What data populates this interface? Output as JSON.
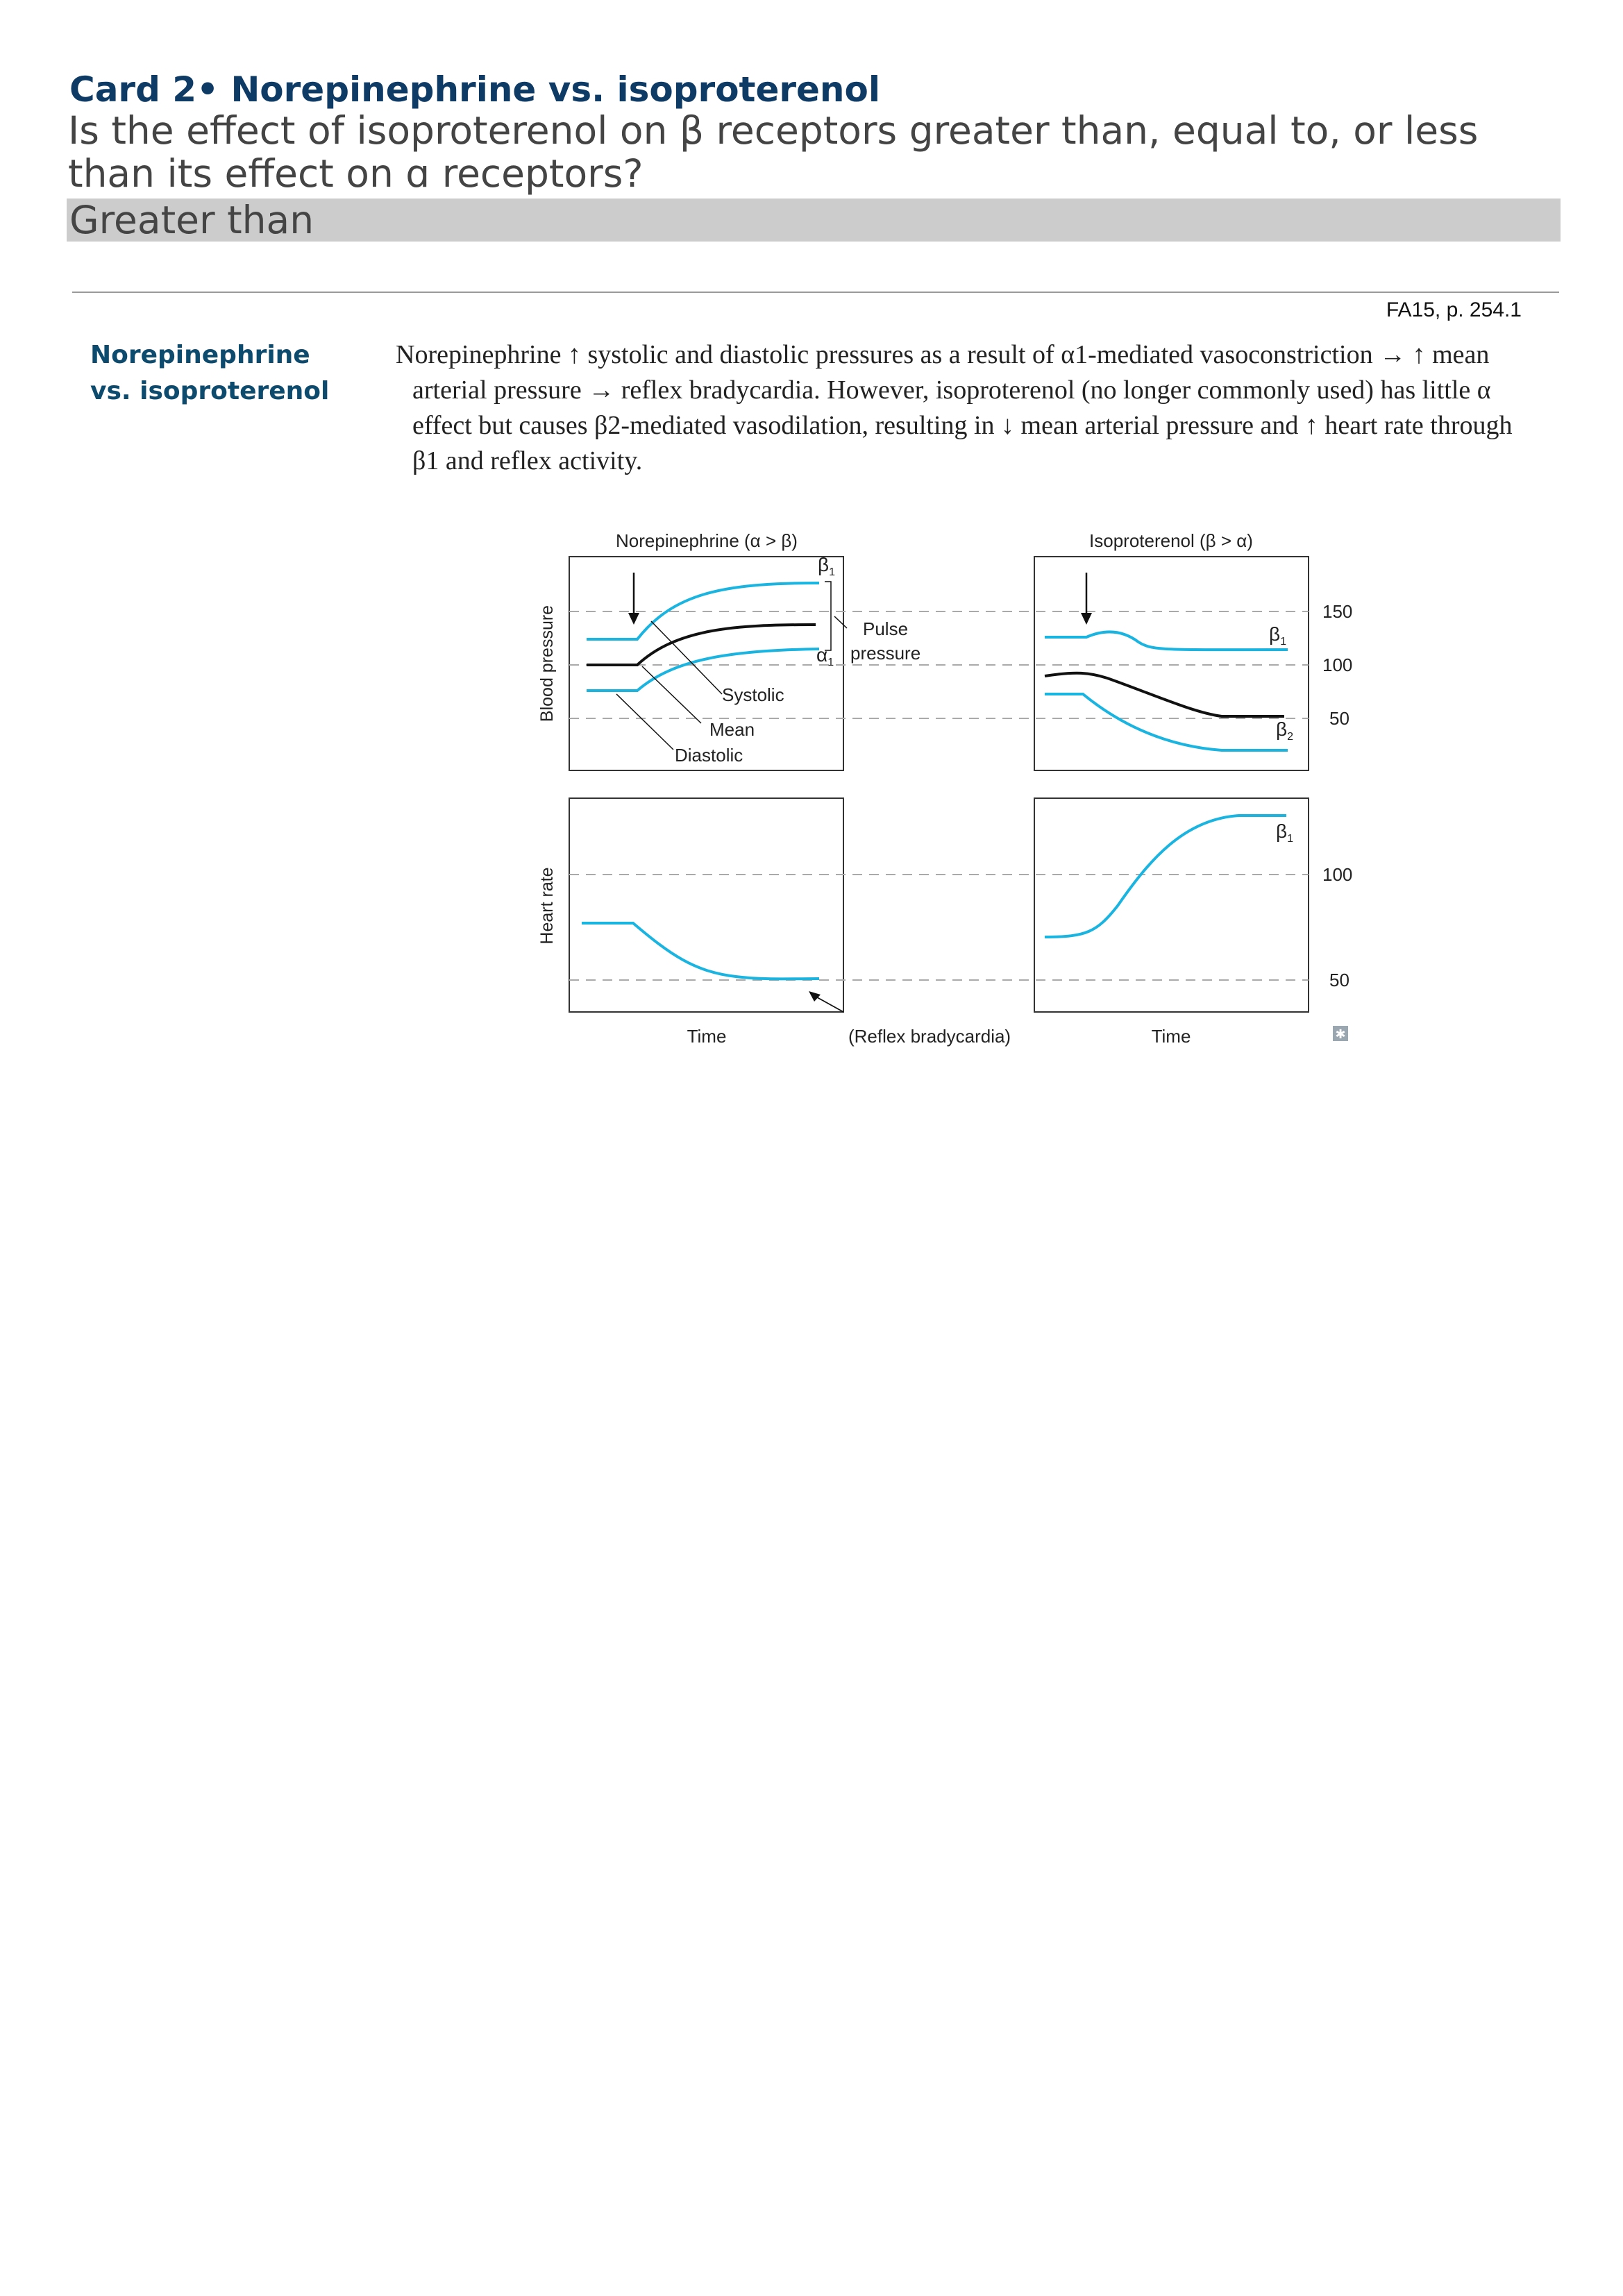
{
  "card": {
    "title": "Card 2• Norepinephrine vs. isoproterenol",
    "question": "Is the effect of isoproterenol on β receptors greater than, equal to, or less than its effect on ɑ receptors?",
    "answer": "Greater than"
  },
  "reference": "FA15, p. 254.1",
  "topic": "Norepinephrine vs. isoproterenol",
  "paragraph": "Norepinephrine ↑ systolic and diastolic pressures as a result of α1-mediated vasoconstriction → ↑ mean arterial pressure → reflex bradycardia. However, isoproterenol (no longer commonly used) has little α effect but causes β2-mediated vasodilation, resulting in ↓ mean arterial pressure and ↑ heart rate through β1 and reflex activity.",
  "figure": {
    "colors": {
      "receptor_line": "#1ab4e0",
      "mean_line": "#111111",
      "gridline": "#aaaaaa"
    },
    "norepinephrine_title": "Norepinephrine (α > β)",
    "isoproterenol_title": "Isoproterenol (β > α)",
    "bp_axis_label": "Blood pressure",
    "hr_axis_label": "Heart rate",
    "time_label": "Time",
    "bp_ticks": [
      "150",
      "100",
      "50"
    ],
    "hr_ticks": [
      "100",
      "50"
    ],
    "labels": {
      "systolic": "Systolic",
      "mean": "Mean",
      "diastolic": "Diastolic",
      "pulse_pressure_1": "Pulse",
      "pulse_pressure_2": "pressure",
      "reflex": "(Reflex bradycardia)",
      "beta1": "β",
      "alpha1": "α",
      "beta2": "β",
      "sub1": "1",
      "sub2": "2"
    }
  }
}
